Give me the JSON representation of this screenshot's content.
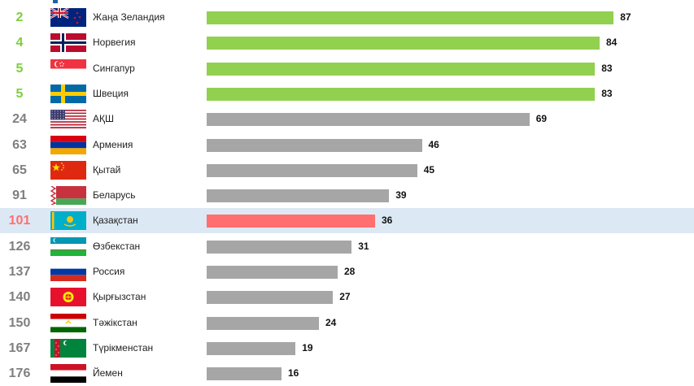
{
  "colors": {
    "top": "#92d050",
    "default": "#a6a6a6",
    "highlight_bar": "#ff6f6f",
    "highlight_rank": "#ff6f6f",
    "top_rank": "#7ccf3c",
    "default_rank": "#7f7f7f",
    "highlight_row": "#dde8f5"
  },
  "chart_data": {
    "type": "bar",
    "orientation": "horizontal",
    "categories": [
      "Жаңа Зеландия",
      "Норвегия",
      "Сингапур",
      "Швеция",
      "АҚШ",
      "Армения",
      "Қытай",
      "Беларусь",
      "Қазақстан",
      "Өзбекстан",
      "Россия",
      "Қырғызстан",
      "Тәжікстан",
      "Түрікменстан",
      "Йемен"
    ],
    "ranks": [
      "2",
      "4",
      "5",
      "5",
      "24",
      "63",
      "65",
      "91",
      "101",
      "126",
      "137",
      "140",
      "150",
      "167",
      "176"
    ],
    "values": [
      87,
      84,
      83,
      83,
      69,
      46,
      45,
      39,
      36,
      31,
      28,
      27,
      24,
      19,
      16
    ],
    "groups": [
      "top",
      "top",
      "top",
      "top",
      "default",
      "default",
      "default",
      "default",
      "highlight",
      "default",
      "default",
      "default",
      "default",
      "default",
      "default"
    ],
    "flags": [
      "new-zealand-flag-icon",
      "norway-flag-icon",
      "singapore-flag-icon",
      "sweden-flag-icon",
      "usa-flag-icon",
      "armenia-flag-icon",
      "china-flag-icon",
      "belarus-flag-icon",
      "kazakhstan-flag-icon",
      "uzbekistan-flag-icon",
      "russia-flag-icon",
      "kyrgyzstan-flag-icon",
      "tajikistan-flag-icon",
      "turkmenistan-flag-icon",
      "yemen-flag-icon"
    ],
    "xlim": [
      0,
      100
    ],
    "highlighted": "Қазақстан",
    "grid": false,
    "legend": "none",
    "title": "",
    "xlabel": "",
    "ylabel": ""
  }
}
